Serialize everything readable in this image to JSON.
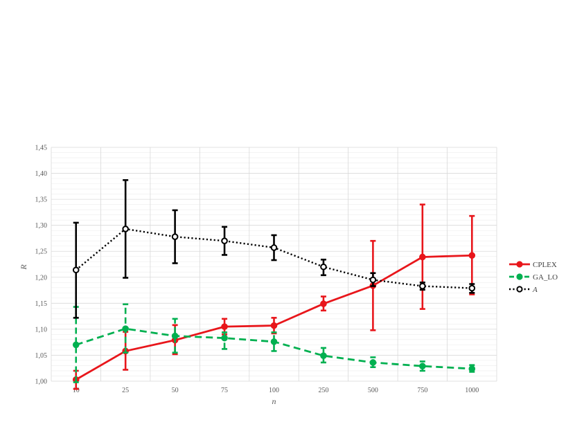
{
  "chart_data": {
    "type": "line",
    "title": "",
    "xlabel": "n",
    "ylabel": "R",
    "categories": [
      "10",
      "25",
      "50",
      "75",
      "100",
      "250",
      "500",
      "750",
      "1000"
    ],
    "ylim": [
      1.0,
      1.45
    ],
    "y_ticks": [
      "1,00",
      "1,05",
      "1,10",
      "1,15",
      "1,20",
      "1,25",
      "1,30",
      "1,35",
      "1,40",
      "1,45"
    ],
    "grid": true,
    "legend_position": "right",
    "series": [
      {
        "name": "CPLEX",
        "color": "#e8161b",
        "line_style": "solid",
        "values": [
          1.003,
          1.058,
          1.079,
          1.105,
          1.107,
          1.149,
          1.184,
          1.239,
          1.242
        ],
        "err_low": [
          0.985,
          1.022,
          1.052,
          1.09,
          1.092,
          1.136,
          1.098,
          1.139,
          1.167
        ],
        "err_high": [
          1.02,
          1.095,
          1.108,
          1.12,
          1.122,
          1.163,
          1.27,
          1.34,
          1.318
        ]
      },
      {
        "name": "GA_LO",
        "color": "#00b050",
        "line_style": "dashed",
        "values": [
          1.07,
          1.101,
          1.087,
          1.083,
          1.076,
          1.049,
          1.036,
          1.029,
          1.024
        ],
        "err_low": [
          0.998,
          1.055,
          1.055,
          1.062,
          1.058,
          1.036,
          1.027,
          1.02,
          1.018
        ],
        "err_high": [
          1.143,
          1.148,
          1.12,
          1.094,
          1.094,
          1.064,
          1.046,
          1.038,
          1.031
        ]
      },
      {
        "name": "A",
        "color": "#000000",
        "line_style": "dotted",
        "values": [
          1.214,
          1.293,
          1.278,
          1.27,
          1.257,
          1.22,
          1.195,
          1.183,
          1.179
        ],
        "err_low": [
          1.122,
          1.199,
          1.227,
          1.243,
          1.233,
          1.204,
          1.183,
          1.176,
          1.17
        ],
        "err_high": [
          1.305,
          1.387,
          1.329,
          1.297,
          1.281,
          1.234,
          1.208,
          1.19,
          1.187
        ]
      }
    ]
  }
}
